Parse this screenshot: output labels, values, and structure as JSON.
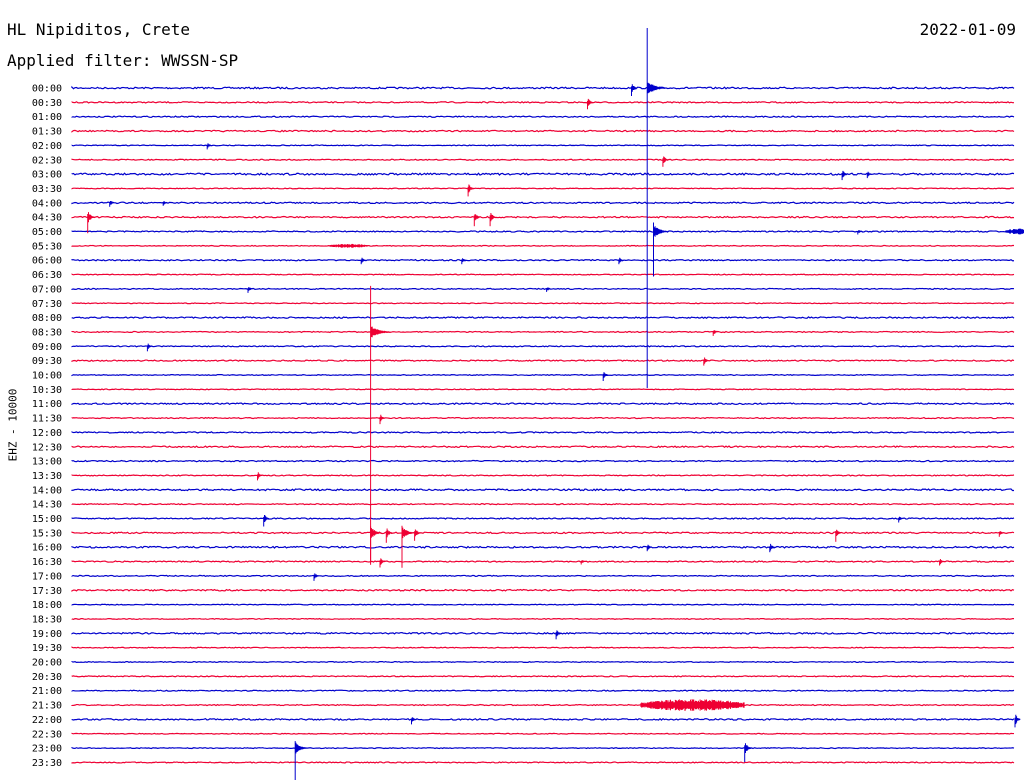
{
  "header": {
    "station": "HL Nipiditos, Crete",
    "date": "2022-01-09",
    "filter": "Applied filter: WWSSN-SP"
  },
  "colors": {
    "even_row": "#0000cc",
    "odd_row": "#ee0033"
  },
  "chart_data": {
    "type": "line",
    "title": "HL Nipiditos, Crete",
    "ylabel": "EHZ - 10000",
    "rows": [
      "00:00",
      "00:30",
      "01:00",
      "01:30",
      "02:00",
      "02:30",
      "03:00",
      "03:30",
      "04:00",
      "04:30",
      "05:00",
      "05:30",
      "06:00",
      "06:30",
      "07:00",
      "07:30",
      "08:00",
      "08:30",
      "09:00",
      "09:30",
      "10:00",
      "10:30",
      "11:00",
      "11:30",
      "12:00",
      "12:30",
      "13:00",
      "13:30",
      "14:00",
      "14:30",
      "15:00",
      "15:30",
      "16:00",
      "16:30",
      "17:00",
      "17:30",
      "18:00",
      "18:30",
      "19:00",
      "19:30",
      "20:00",
      "20:30",
      "21:00",
      "21:30",
      "22:00",
      "22:30",
      "23:00",
      "23:30"
    ],
    "minutes_per_row": 30,
    "noise_level": [
      0.8,
      0.6,
      0.6,
      0.7,
      0.4,
      0.5,
      0.9,
      0.4,
      0.7,
      0.7,
      0.6,
      0.4,
      0.6,
      0.4,
      0.5,
      0.4,
      0.7,
      0.5,
      0.5,
      0.6,
      0.4,
      0.4,
      0.7,
      0.5,
      0.6,
      0.7,
      0.6,
      0.5,
      0.8,
      0.5,
      0.6,
      0.7,
      0.8,
      0.6,
      0.5,
      0.7,
      0.4,
      0.4,
      0.7,
      0.4,
      0.4,
      0.5,
      0.5,
      0.5,
      0.7,
      0.4,
      0.4,
      0.5
    ],
    "events": [
      {
        "row": 0,
        "minute": 17.8,
        "amp": 8
      },
      {
        "row": 0,
        "minute": 18.3,
        "amp": 300
      },
      {
        "row": 1,
        "minute": 16.4,
        "amp": 7
      },
      {
        "row": 4,
        "minute": 4.3,
        "amp": 4
      },
      {
        "row": 5,
        "minute": 18.8,
        "amp": 7
      },
      {
        "row": 6,
        "minute": 24.5,
        "amp": 6
      },
      {
        "row": 6,
        "minute": 25.3,
        "amp": 4
      },
      {
        "row": 7,
        "minute": 12.6,
        "amp": 8
      },
      {
        "row": 8,
        "minute": 1.2,
        "amp": 4
      },
      {
        "row": 8,
        "minute": 2.9,
        "amp": 3
      },
      {
        "row": 9,
        "minute": 0.5,
        "amp": 16
      },
      {
        "row": 9,
        "minute": 12.8,
        "amp": 9
      },
      {
        "row": 9,
        "minute": 13.3,
        "amp": 9
      },
      {
        "row": 10,
        "minute": 18.5,
        "amp": 45
      },
      {
        "row": 10,
        "minute": 25.0,
        "amp": 3
      },
      {
        "row": 12,
        "minute": 9.2,
        "amp": 4
      },
      {
        "row": 12,
        "minute": 12.4,
        "amp": 4
      },
      {
        "row": 12,
        "minute": 17.4,
        "amp": 4
      },
      {
        "row": 14,
        "minute": 5.6,
        "amp": 4
      },
      {
        "row": 14,
        "minute": 15.1,
        "amp": 3
      },
      {
        "row": 17,
        "minute": 9.5,
        "amp": 230
      },
      {
        "row": 17,
        "minute": 20.4,
        "amp": 4
      },
      {
        "row": 18,
        "minute": 2.4,
        "amp": 5
      },
      {
        "row": 19,
        "minute": 20.1,
        "amp": 5
      },
      {
        "row": 20,
        "minute": 16.9,
        "amp": 6
      },
      {
        "row": 23,
        "minute": 9.8,
        "amp": 6
      },
      {
        "row": 27,
        "minute": 5.9,
        "amp": 5
      },
      {
        "row": 30,
        "minute": 6.1,
        "amp": 8
      },
      {
        "row": 30,
        "minute": 26.3,
        "amp": 4
      },
      {
        "row": 31,
        "minute": 9.5,
        "amp": 32
      },
      {
        "row": 31,
        "minute": 10.0,
        "amp": 10
      },
      {
        "row": 31,
        "minute": 10.5,
        "amp": 35
      },
      {
        "row": 31,
        "minute": 10.9,
        "amp": 8
      },
      {
        "row": 31,
        "minute": 24.3,
        "amp": 9
      },
      {
        "row": 31,
        "minute": 29.5,
        "amp": 4
      },
      {
        "row": 32,
        "minute": 18.3,
        "amp": 4
      },
      {
        "row": 32,
        "minute": 22.2,
        "amp": 5
      },
      {
        "row": 33,
        "minute": 9.8,
        "amp": 6
      },
      {
        "row": 33,
        "minute": 16.2,
        "amp": 3
      },
      {
        "row": 33,
        "minute": 27.6,
        "amp": 4
      },
      {
        "row": 34,
        "minute": 7.7,
        "amp": 5
      },
      {
        "row": 38,
        "minute": 15.4,
        "amp": 6
      },
      {
        "row": 43,
        "minute": 19.5,
        "amp": 6
      },
      {
        "row": 44,
        "minute": 10.8,
        "amp": 5
      },
      {
        "row": 44,
        "minute": 30.0,
        "amp": 8
      },
      {
        "row": 46,
        "minute": 7.1,
        "amp": 35
      },
      {
        "row": 46,
        "minute": 21.4,
        "amp": 14
      }
    ],
    "bursts": [
      {
        "row": 43,
        "from": 18.1,
        "to": 21.4,
        "amp": 6
      },
      {
        "row": 10,
        "from": 29.7,
        "to": 30.6,
        "amp": 3
      },
      {
        "row": 11,
        "from": 8.2,
        "to": 9.4,
        "amp": 2
      }
    ]
  }
}
